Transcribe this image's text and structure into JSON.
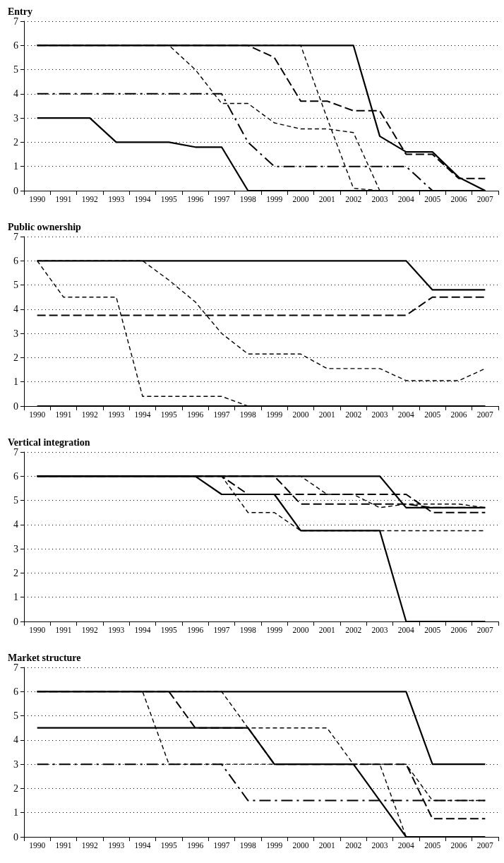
{
  "chart_data": [
    {
      "type": "line",
      "title": "Entry",
      "categories": [
        "1990",
        "1991",
        "1992",
        "1993",
        "1994",
        "1995",
        "1996",
        "1997",
        "1998",
        "1999",
        "2000",
        "2001",
        "2002",
        "2003",
        "2004",
        "2005",
        "2006",
        "2007"
      ],
      "ylim": [
        0,
        7
      ],
      "yticks": [
        0,
        1,
        2,
        3,
        4,
        5,
        6,
        7
      ],
      "grid": "y",
      "marker": "none",
      "series": [
        {
          "color": "#000000",
          "line_style": "dashed",
          "values": [
            6,
            6,
            6,
            6,
            6,
            6,
            5,
            3.6,
            3.6,
            2.8,
            2.55,
            2.55,
            2.4,
            0,
            0,
            0,
            0,
            0
          ]
        },
        {
          "color": "#000000",
          "line_style": "dashed",
          "values": [
            6,
            6,
            6,
            6,
            6,
            6,
            6,
            6,
            6,
            6,
            6,
            3,
            0.1,
            0,
            0,
            0,
            0,
            0
          ]
        },
        {
          "color": "#000000",
          "line_style": "longdash",
          "values": [
            6,
            6,
            6,
            6,
            6,
            6,
            6,
            6,
            6,
            5.5,
            3.7,
            3.7,
            3.3,
            3.3,
            1.5,
            1.5,
            0.5,
            0.5
          ]
        },
        {
          "color": "#000000",
          "line_style": "dashdot",
          "values": [
            4,
            4,
            4,
            4,
            4,
            4,
            4,
            4,
            2,
            1,
            1,
            1,
            1,
            1,
            1,
            0,
            0,
            0
          ]
        },
        {
          "color": "#000000",
          "line_style": "solid",
          "values": [
            3,
            3,
            3,
            2,
            2,
            2,
            1.8,
            1.8,
            0,
            0,
            0,
            0,
            0,
            0,
            0,
            0,
            0,
            0
          ]
        },
        {
          "color": "#000000",
          "line_style": "solid",
          "values": [
            6,
            6,
            6,
            6,
            6,
            6,
            6,
            6,
            6,
            6,
            6,
            6,
            6,
            2.25,
            1.6,
            1.6,
            0.55,
            0
          ]
        }
      ]
    },
    {
      "type": "line",
      "title": "Public ownership",
      "categories": [
        "1990",
        "1991",
        "1992",
        "1993",
        "1994",
        "1995",
        "1996",
        "1997",
        "1998",
        "1999",
        "2000",
        "2001",
        "2002",
        "2003",
        "2004",
        "2005",
        "2006",
        "2007"
      ],
      "ylim": [
        0,
        7
      ],
      "yticks": [
        0,
        1,
        2,
        3,
        4,
        5,
        6,
        7
      ],
      "grid": "y",
      "marker": "none",
      "series": [
        {
          "color": "#000000",
          "line_style": "dashed",
          "values": [
            6,
            4.5,
            4.5,
            4.5,
            0.4,
            0.4,
            0.4,
            0.4,
            0,
            0,
            0,
            0,
            0,
            0,
            0,
            0,
            0,
            0
          ]
        },
        {
          "color": "#000000",
          "line_style": "dashed",
          "values": [
            6,
            6,
            6,
            6,
            6,
            5.2,
            4.3,
            3,
            2.15,
            2.15,
            2.15,
            1.55,
            1.55,
            1.55,
            1.05,
            1.05,
            1.05,
            1.55
          ]
        },
        {
          "color": "#000000",
          "line_style": "longdash",
          "values": [
            3.75,
            3.75,
            3.75,
            3.75,
            3.75,
            3.75,
            3.75,
            3.75,
            3.75,
            3.75,
            3.75,
            3.75,
            3.75,
            3.75,
            3.75,
            4.5,
            4.5,
            4.5
          ]
        },
        {
          "color": "#000000",
          "line_style": "solid",
          "values": [
            0,
            0,
            0,
            0,
            0,
            0,
            0,
            0,
            0,
            0,
            0,
            0,
            0,
            0,
            0,
            0,
            0,
            0
          ]
        },
        {
          "color": "#000000",
          "line_style": "solid",
          "values": [
            6,
            6,
            6,
            6,
            6,
            6,
            6,
            6,
            6,
            6,
            6,
            6,
            6,
            6,
            6,
            4.8,
            4.8,
            4.8
          ]
        }
      ]
    },
    {
      "type": "line",
      "title": "Vertical integration",
      "categories": [
        "1990",
        "1991",
        "1992",
        "1993",
        "1994",
        "1995",
        "1996",
        "1997",
        "1998",
        "1999",
        "2000",
        "2001",
        "2002",
        "2003",
        "2004",
        "2005",
        "2006",
        "2007"
      ],
      "ylim": [
        0,
        7
      ],
      "yticks": [
        0,
        1,
        2,
        3,
        4,
        5,
        6,
        7
      ],
      "grid": "y",
      "marker": "none",
      "series": [
        {
          "color": "#000000",
          "line_style": "dashed",
          "values": [
            6,
            6,
            6,
            6,
            6,
            6,
            6,
            6,
            4.5,
            4.5,
            3.75,
            3.75,
            3.75,
            3.75,
            3.75,
            3.75,
            3.75,
            3.75
          ]
        },
        {
          "color": "#000000",
          "line_style": "dashed",
          "values": [
            6,
            6,
            6,
            6,
            6,
            6,
            6,
            6,
            6,
            6,
            6,
            5.25,
            5.25,
            4.7,
            4.85,
            4.85,
            4.85,
            4.7
          ]
        },
        {
          "color": "#000000",
          "line_style": "longdash",
          "values": [
            6,
            6,
            6,
            6,
            6,
            6,
            6,
            6,
            5.25,
            5.25,
            5.25,
            5.25,
            5.25,
            5.25,
            5.25,
            4.5,
            4.5,
            4.5
          ]
        },
        {
          "color": "#000000",
          "line_style": "longdash",
          "values": [
            6,
            6,
            6,
            6,
            6,
            6,
            6,
            6,
            6,
            6,
            4.85,
            4.85,
            4.85,
            4.85,
            4.85,
            4.7,
            4.7,
            4.7
          ]
        },
        {
          "color": "#000000",
          "line_style": "solid",
          "values": [
            6,
            6,
            6,
            6,
            6,
            6,
            6,
            5.25,
            5.25,
            5.25,
            3.75,
            3.75,
            3.75,
            3.75,
            0,
            0,
            0,
            0
          ]
        },
        {
          "color": "#000000",
          "line_style": "solid",
          "values": [
            6,
            6,
            6,
            6,
            6,
            6,
            6,
            6,
            6,
            6,
            6,
            6,
            6,
            6,
            4.7,
            4.7,
            4.7,
            4.7
          ]
        }
      ]
    },
    {
      "type": "line",
      "title": "Market structure",
      "categories": [
        "1990",
        "1991",
        "1992",
        "1993",
        "1994",
        "1995",
        "1996",
        "1997",
        "1998",
        "1999",
        "2000",
        "2001",
        "2002",
        "2003",
        "2004",
        "2005",
        "2006",
        "2007"
      ],
      "ylim": [
        0,
        7
      ],
      "yticks": [
        0,
        1,
        2,
        3,
        4,
        5,
        6,
        7
      ],
      "grid": "y",
      "marker": "none",
      "series": [
        {
          "color": "#000000",
          "line_style": "dashed",
          "values": [
            6,
            6,
            6,
            6,
            6,
            3,
            3,
            3,
            3,
            3,
            3,
            3,
            3,
            3,
            0,
            0,
            0,
            0
          ]
        },
        {
          "color": "#000000",
          "line_style": "dashed",
          "values": [
            6,
            6,
            6,
            6,
            6,
            6,
            6,
            6,
            4.5,
            4.5,
            4.5,
            4.5,
            3,
            3,
            3,
            1.5,
            1.5,
            1.5
          ]
        },
        {
          "color": "#000000",
          "line_style": "longdash",
          "values": [
            6,
            6,
            6,
            6,
            6,
            6,
            4.5,
            4.5,
            4.5,
            3,
            3,
            3,
            3,
            3,
            3,
            0.75,
            0.75,
            0.75
          ]
        },
        {
          "color": "#000000",
          "line_style": "dashdot",
          "values": [
            3,
            3,
            3,
            3,
            3,
            3,
            3,
            3,
            1.5,
            1.5,
            1.5,
            1.5,
            1.5,
            1.5,
            1.5,
            1.5,
            1.5,
            1.5
          ]
        },
        {
          "color": "#000000",
          "line_style": "solid",
          "values": [
            4.5,
            4.5,
            4.5,
            4.5,
            4.5,
            4.5,
            4.5,
            4.5,
            4.5,
            3,
            3,
            3,
            3,
            1.5,
            0,
            0,
            0,
            0
          ]
        },
        {
          "color": "#000000",
          "line_style": "solid",
          "values": [
            6,
            6,
            6,
            6,
            6,
            6,
            6,
            6,
            6,
            6,
            6,
            6,
            6,
            6,
            6,
            3,
            3,
            3
          ]
        }
      ]
    }
  ]
}
